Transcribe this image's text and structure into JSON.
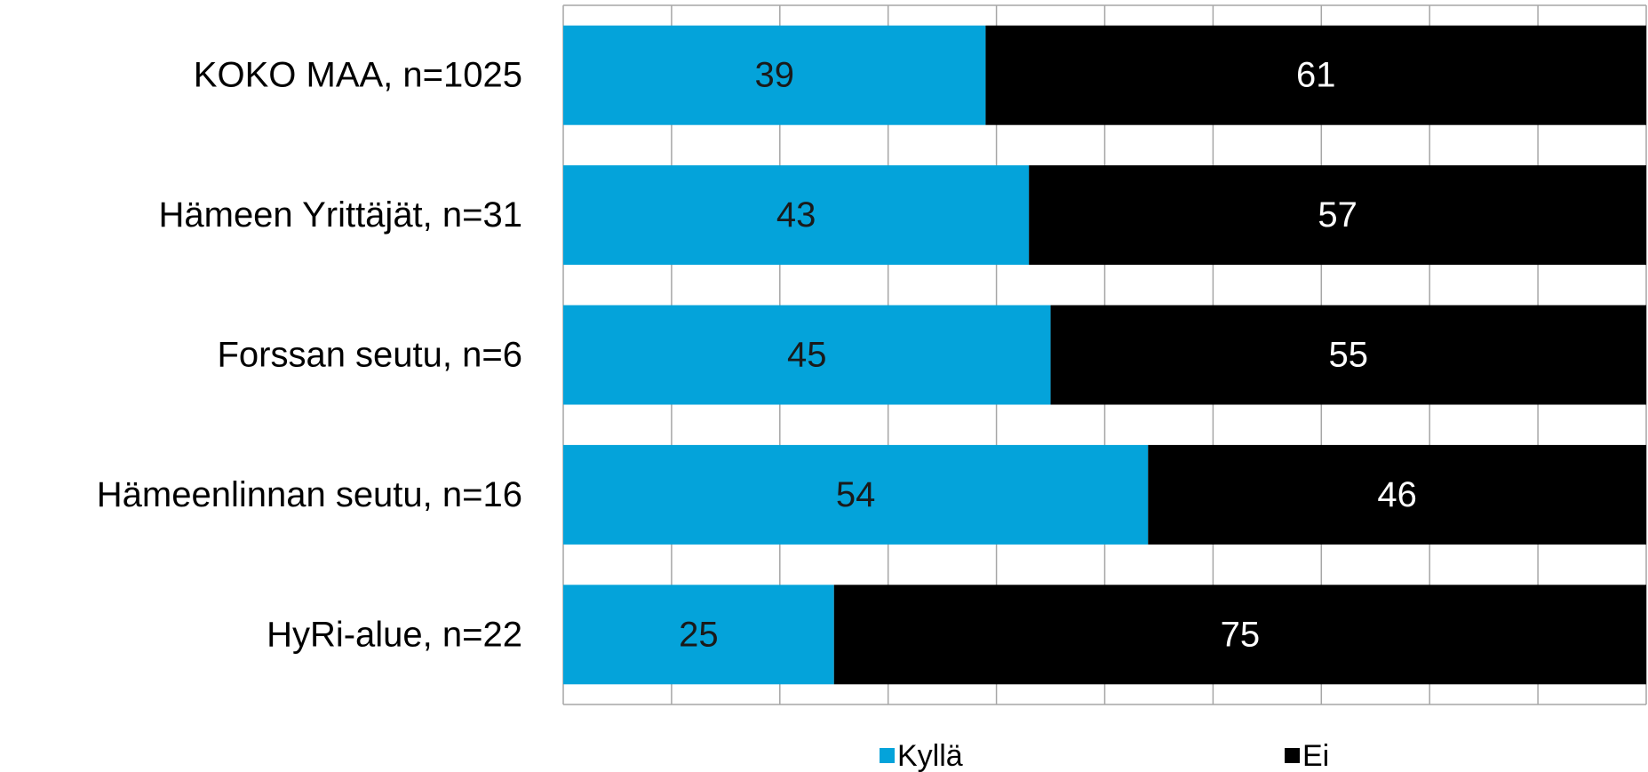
{
  "chart_data": {
    "type": "bar",
    "orientation": "horizontal",
    "stacked": true,
    "percent_stacked": true,
    "categories": [
      "KOKO MAA, n=1025",
      "Hämeen Yrittäjät, n=31",
      "Forssan seutu, n=6",
      "Hämeenlinnan seutu, n=16",
      "HyRi-alue, n=22"
    ],
    "series": [
      {
        "name": "Kyllä",
        "values": [
          39,
          43,
          45,
          54,
          25
        ],
        "color": "#04A3DA",
        "label_color": "#1a1a1a"
      },
      {
        "name": "Ei",
        "values": [
          61,
          57,
          55,
          46,
          75
        ],
        "color": "#000000",
        "label_color": "#ffffff"
      }
    ],
    "xlim": [
      0,
      100
    ],
    "grid": true,
    "legend": "bottom"
  }
}
